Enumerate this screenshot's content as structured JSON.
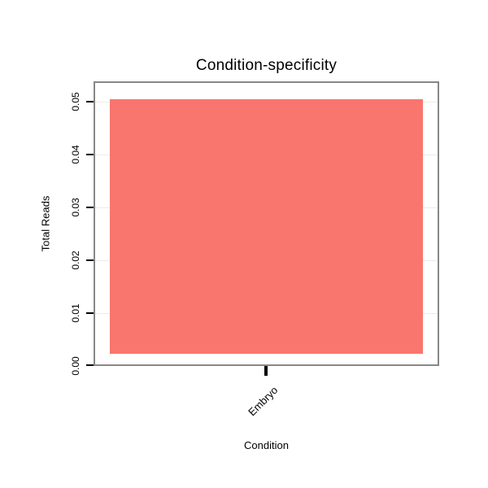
{
  "chart_data": {
    "type": "bar",
    "title": "Condition-specificity",
    "xlabel": "Condition",
    "ylabel": "Total Reads",
    "categories": [
      "Embryo"
    ],
    "values": [
      0.05
    ],
    "ylim": [
      0,
      0.05
    ],
    "yticks": [
      "0.00",
      "0.01",
      "0.02",
      "0.03",
      "0.04",
      "0.05"
    ],
    "grid": true,
    "legend": "none",
    "bar_color": "#F8766D",
    "panel_border_color": "#878787",
    "gridline_color": "#EBEBEB"
  }
}
